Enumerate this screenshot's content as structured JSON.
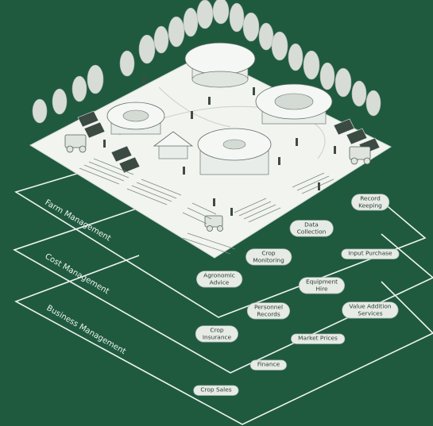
{
  "layers": [
    {
      "label": "Farm Management"
    },
    {
      "label": "Cost Management"
    },
    {
      "label": "Business Management"
    }
  ],
  "pills": [
    {
      "text": "Record\nKeeping"
    },
    {
      "text": "Data\nCollection"
    },
    {
      "text": "Crop\nMonitoring"
    },
    {
      "text": "Input Purchase"
    },
    {
      "text": "Agronomic\nAdvice"
    },
    {
      "text": "Equipment\nHire"
    },
    {
      "text": "Personnel\nRecords"
    },
    {
      "text": "Value Addition\nServices"
    },
    {
      "text": "Crop\nInsurance"
    },
    {
      "text": "Market Prices"
    },
    {
      "text": "Finance"
    },
    {
      "text": "Crop Sales"
    }
  ],
  "colors": {
    "background": "#1f5a3f",
    "plate": "#f2f4f0",
    "outline": "#f0f4f1",
    "pill": "#e6ebe6",
    "tree": "#d7ddd6"
  }
}
